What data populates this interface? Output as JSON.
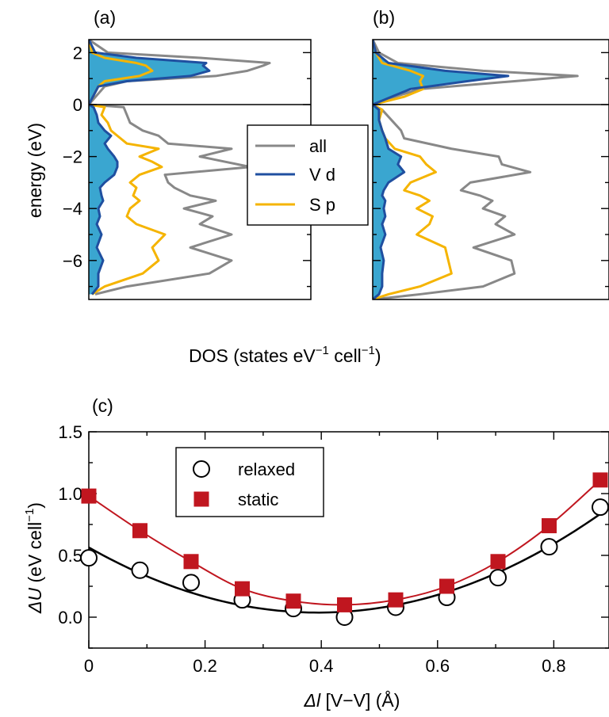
{
  "chart_data": [
    {
      "type": "area",
      "panel_label": "(a)",
      "orientation": "horizontal-dos",
      "xlabel": "DOS (states eV−1 cell−1)",
      "ylabel": "energy (eV)",
      "ylim": [
        -7.5,
        2.5
      ],
      "yticks": [
        2,
        0,
        -2,
        -4,
        -6
      ],
      "fermi_level": 0,
      "series": [
        {
          "name": "all",
          "color": "#888888",
          "energy": [
            -7.3,
            -7,
            -6.5,
            -6,
            -5.5,
            -5,
            -4.6,
            -4.3,
            -4,
            -3.7,
            -3.5,
            -3.2,
            -3,
            -2.7,
            -2.4,
            -2.2,
            -2,
            -1.7,
            -1.5,
            -1.2,
            -1,
            -0.7,
            -0.4,
            -0.1,
            0,
            0.7,
            0.9,
            1.1,
            1.3,
            1.5,
            1.6,
            1.8,
            2,
            2.5
          ],
          "dos": [
            0.2,
            1.2,
            3.8,
            4.5,
            3.2,
            4.5,
            3.5,
            3.9,
            3.0,
            4.0,
            3.2,
            2.7,
            2.5,
            2.4,
            5.1,
            4.3,
            3.5,
            4.5,
            2.5,
            2.2,
            1.7,
            1.3,
            1.2,
            1.1,
            0,
            0.5,
            1.2,
            4.0,
            5.0,
            5.5,
            5.7,
            3.5,
            0.6,
            0
          ]
        },
        {
          "name": "V d",
          "color": "#1f4fa0",
          "energy": [
            -7.3,
            -7,
            -6.5,
            -6,
            -5.5,
            -5,
            -4.6,
            -4.3,
            -4,
            -3.7,
            -3.5,
            -3.2,
            -3,
            -2.7,
            -2.4,
            -2.2,
            -2,
            -1.7,
            -1.5,
            -1.2,
            -1,
            -0.7,
            -0.4,
            -0.1,
            0,
            0.7,
            0.9,
            1.1,
            1.3,
            1.5,
            1.6,
            1.8,
            2,
            2.5
          ],
          "dos": [
            0.1,
            0.3,
            0.3,
            0.45,
            0.25,
            0.4,
            0.25,
            0.35,
            0.3,
            0.45,
            0.4,
            0.35,
            0.5,
            0.8,
            0.9,
            0.9,
            0.8,
            0.6,
            0.5,
            0.7,
            0.5,
            0.3,
            0.25,
            0.15,
            0,
            0.3,
            1.2,
            3.2,
            3.8,
            3.6,
            3.7,
            1.5,
            0.2,
            0
          ]
        },
        {
          "name": "S p",
          "color": "#f5b400",
          "energy": [
            -7.3,
            -7,
            -6.5,
            -6,
            -5.5,
            -5,
            -4.6,
            -4.3,
            -4,
            -3.7,
            -3.5,
            -3.2,
            -3,
            -2.7,
            -2.4,
            -2.2,
            -2,
            -1.7,
            -1.5,
            -1.2,
            -1,
            -0.7,
            -0.4,
            -0.1,
            0,
            0.7,
            0.9,
            1.1,
            1.3,
            1.5,
            1.6,
            1.8,
            2,
            2.5
          ],
          "dos": [
            0.1,
            0.5,
            1.7,
            2.2,
            2.0,
            2.4,
            1.5,
            1.2,
            1.3,
            1.6,
            1.4,
            1.5,
            1.3,
            1.6,
            2.3,
            2.0,
            1.6,
            2.2,
            1.2,
            0.9,
            0.7,
            0.6,
            0.4,
            0.5,
            0,
            0.3,
            0.5,
            1.6,
            2.0,
            1.8,
            1.5,
            0.5,
            0.1,
            0
          ]
        }
      ]
    },
    {
      "type": "area",
      "panel_label": "(b)",
      "orientation": "horizontal-dos",
      "ylim": [
        -7.5,
        2.5
      ],
      "yticks": [
        2,
        0,
        -2,
        -4,
        -6
      ],
      "fermi_level": 0,
      "series": [
        {
          "name": "all",
          "color": "#888888",
          "energy": [
            -7.5,
            -7.3,
            -7,
            -6.5,
            -6,
            -5.5,
            -5,
            -4.6,
            -4.3,
            -4,
            -3.7,
            -3.5,
            -3.3,
            -3,
            -2.6,
            -2.3,
            -2,
            -1.7,
            -1.3,
            -1,
            -0.6,
            -0.2,
            0,
            0.3,
            0.6,
            0.9,
            1.1,
            1.3,
            1.6,
            2,
            2.5
          ],
          "dos": [
            0,
            1.5,
            3.5,
            4.5,
            4.4,
            3.2,
            4.5,
            3.9,
            4.2,
            3.5,
            3.8,
            3.4,
            2.8,
            3.1,
            5.0,
            4.1,
            4.0,
            2.5,
            1.0,
            0.9,
            0.6,
            0.3,
            0,
            0.7,
            1.5,
            4.5,
            6.5,
            3.5,
            0.8,
            0.2,
            0
          ]
        },
        {
          "name": "V d",
          "color": "#1f4fa0",
          "energy": [
            -7.5,
            -7.3,
            -7,
            -6.5,
            -6,
            -5.5,
            -5,
            -4.6,
            -4.3,
            -4,
            -3.7,
            -3.5,
            -3.3,
            -3,
            -2.6,
            -2.3,
            -2,
            -1.7,
            -1.3,
            -1,
            -0.6,
            -0.2,
            0,
            0.3,
            0.6,
            0.9,
            1.1,
            1.3,
            1.6,
            2,
            2.5
          ],
          "dos": [
            0,
            0.2,
            0.3,
            0.3,
            0.35,
            0.25,
            0.4,
            0.3,
            0.4,
            0.35,
            0.4,
            0.3,
            0.35,
            0.5,
            1.0,
            0.8,
            0.9,
            0.5,
            0.4,
            0.3,
            0.2,
            0.2,
            0,
            0.6,
            1.2,
            3.0,
            4.3,
            2.3,
            0.5,
            0.1,
            0
          ]
        },
        {
          "name": "S p",
          "color": "#f5b400",
          "energy": [
            -7.5,
            -7.3,
            -7,
            -6.5,
            -6,
            -5.5,
            -5,
            -4.6,
            -4.3,
            -4,
            -3.7,
            -3.5,
            -3.3,
            -3,
            -2.6,
            -2.3,
            -2,
            -1.7,
            -1.3,
            -1,
            -0.6,
            -0.2,
            0,
            0.3,
            0.6,
            0.9,
            1.1,
            1.3,
            1.6,
            2,
            2.5
          ],
          "dos": [
            0,
            0.5,
            1.5,
            2.5,
            2.4,
            2.3,
            1.4,
            1.8,
            1.9,
            1.4,
            1.8,
            1.5,
            1.0,
            1.2,
            2.0,
            1.7,
            1.5,
            0.7,
            0.4,
            0.3,
            0.2,
            0.3,
            0,
            1.0,
            1.6,
            1.5,
            1.6,
            1.2,
            0.3,
            0.1,
            0
          ]
        }
      ]
    },
    {
      "type": "line",
      "panel_label": "(c)",
      "xlabel_italic": "Δl",
      "xlabel_rest": " [V−V] (Å)",
      "ylabel_italic": "ΔU",
      "ylabel_rest": " (eV cell−1)",
      "xlim": [
        0,
        0.88
      ],
      "ylim": [
        -0.25,
        1.5
      ],
      "xticks": [
        0,
        0.2,
        0.4,
        0.6,
        0.8
      ],
      "xtick_labels": [
        "0",
        "0.2",
        "0.4",
        "0.6",
        "0.8"
      ],
      "yticks": [
        0,
        0.5,
        1.0,
        1.5
      ],
      "ytick_labels": [
        "0.0",
        "0.5",
        "1.0",
        "1.5"
      ],
      "legend_position": "top-left",
      "series": [
        {
          "name": "relaxed",
          "marker": "open-circle",
          "color": "#000000",
          "x": [
            0,
            0.088,
            0.176,
            0.264,
            0.352,
            0.44,
            0.528,
            0.616,
            0.704,
            0.792,
            0.88
          ],
          "y": [
            0.48,
            0.38,
            0.28,
            0.14,
            0.07,
            0.0,
            0.08,
            0.16,
            0.32,
            0.57,
            0.89
          ],
          "fit": "quadratic"
        },
        {
          "name": "static",
          "marker": "filled-square",
          "color": "#c0161f",
          "x": [
            0,
            0.088,
            0.176,
            0.264,
            0.352,
            0.44,
            0.528,
            0.616,
            0.704,
            0.792,
            0.88
          ],
          "y": [
            0.98,
            0.7,
            0.45,
            0.23,
            0.13,
            0.1,
            0.14,
            0.25,
            0.45,
            0.74,
            1.11
          ],
          "fit": "smooth"
        }
      ]
    }
  ]
}
